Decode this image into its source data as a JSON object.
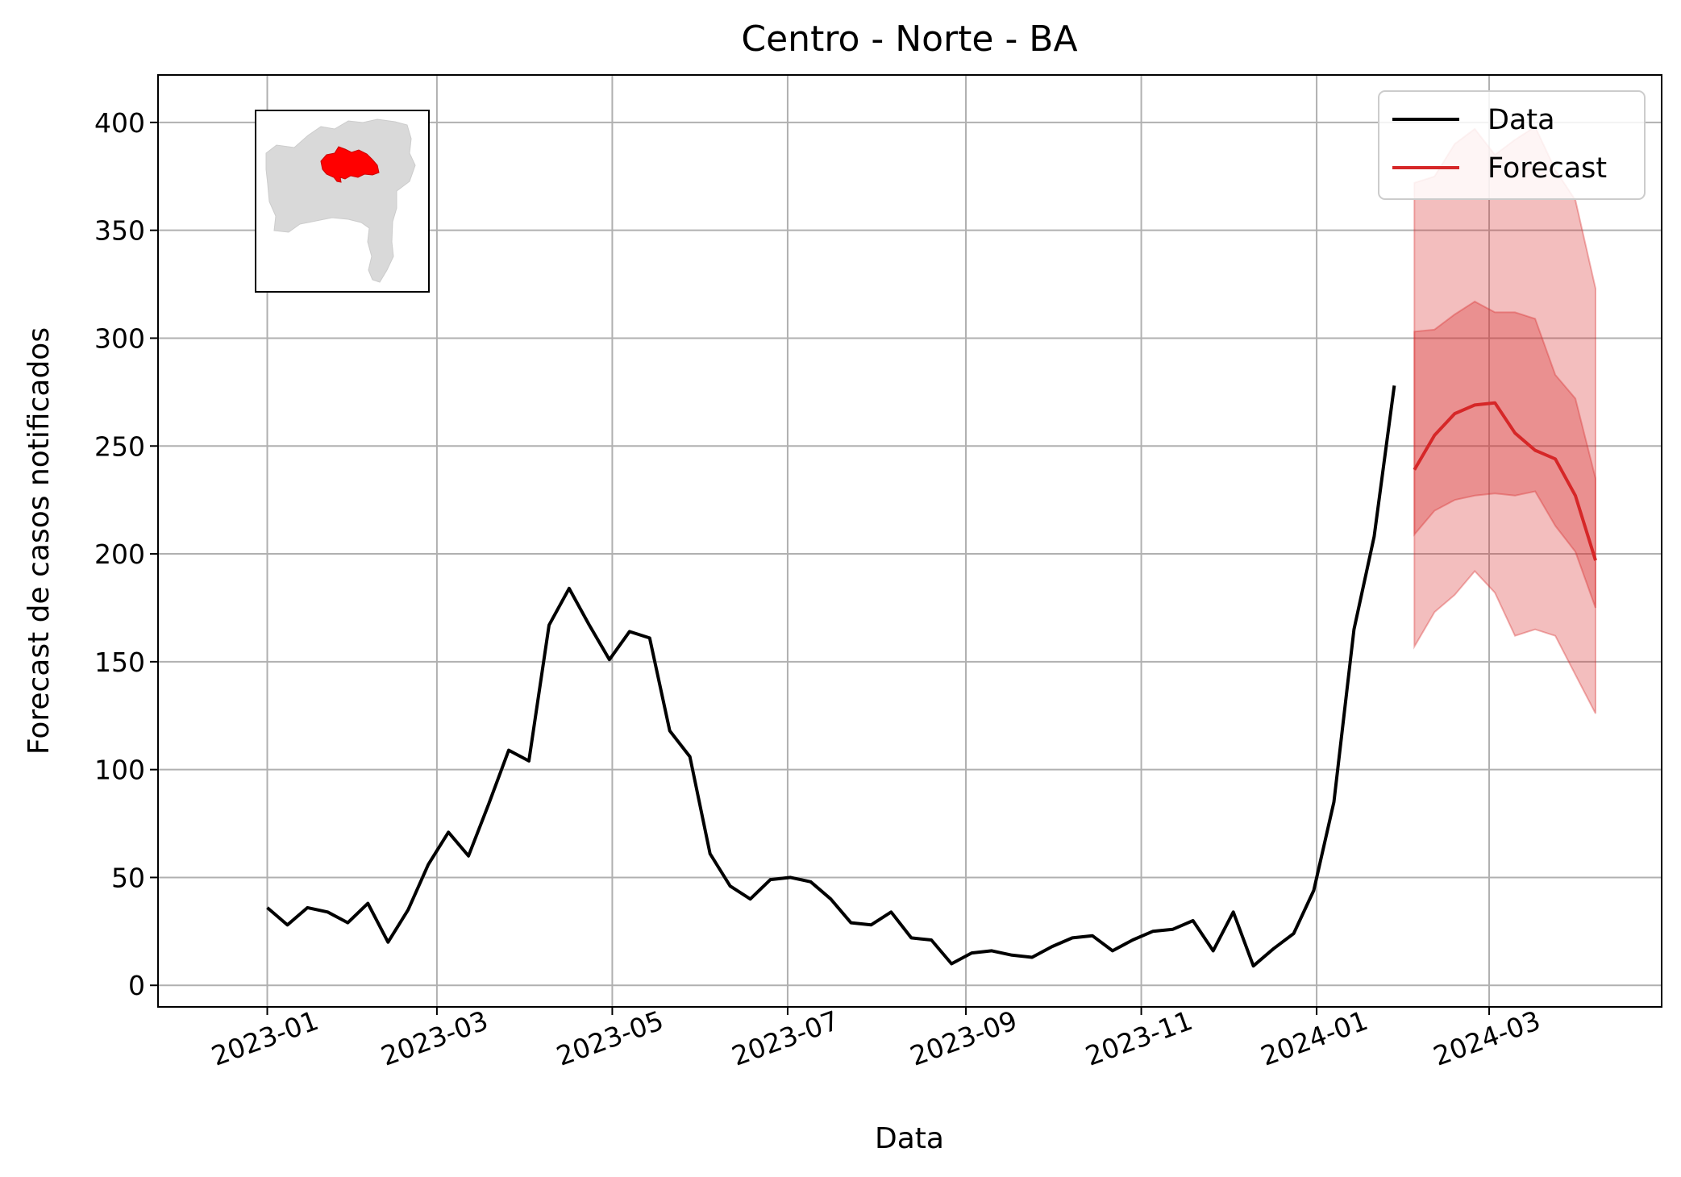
{
  "chart_data": {
    "type": "line",
    "title": "Centro - Norte - BA",
    "xlabel": "Data",
    "ylabel": "Forecast de casos notificados",
    "ylim": [
      -10,
      422
    ],
    "xlim": [
      "2022-11-24",
      "2024-04-30"
    ],
    "grid": true,
    "legend_placement": "top-right",
    "y_ticks": [
      0,
      50,
      100,
      150,
      200,
      250,
      300,
      350,
      400
    ],
    "x_ticks": [
      "2023-01",
      "2023-03",
      "2023-05",
      "2023-07",
      "2023-09",
      "2023-11",
      "2024-01",
      "2024-03"
    ],
    "colors": {
      "data": "#000000",
      "forecast": "#d62728",
      "band": "#d62728",
      "map_base": "#d9d9d9",
      "map_region": "#ff0000"
    },
    "inset_map": {
      "icon": "bahia-state-map-with-highlighted-region"
    },
    "series": [
      {
        "name": "Data",
        "x": [
          "2023-01-01",
          "2023-01-08",
          "2023-01-15",
          "2023-01-22",
          "2023-01-29",
          "2023-02-05",
          "2023-02-12",
          "2023-02-19",
          "2023-02-26",
          "2023-03-05",
          "2023-03-12",
          "2023-03-19",
          "2023-03-26",
          "2023-04-02",
          "2023-04-09",
          "2023-04-16",
          "2023-04-23",
          "2023-04-30",
          "2023-05-07",
          "2023-05-14",
          "2023-05-21",
          "2023-05-28",
          "2023-06-04",
          "2023-06-11",
          "2023-06-18",
          "2023-06-25",
          "2023-07-02",
          "2023-07-09",
          "2023-07-16",
          "2023-07-23",
          "2023-07-30",
          "2023-08-06",
          "2023-08-13",
          "2023-08-20",
          "2023-08-27",
          "2023-09-03",
          "2023-09-10",
          "2023-09-17",
          "2023-09-24",
          "2023-10-01",
          "2023-10-08",
          "2023-10-15",
          "2023-10-22",
          "2023-10-29",
          "2023-11-05",
          "2023-11-12",
          "2023-11-19",
          "2023-11-26",
          "2023-12-03",
          "2023-12-10",
          "2023-12-17",
          "2023-12-24",
          "2023-12-31",
          "2024-01-07",
          "2024-01-14",
          "2024-01-21",
          "2024-01-28"
        ],
        "y": [
          36,
          28,
          36,
          34,
          29,
          38,
          20,
          35,
          56,
          71,
          60,
          84,
          109,
          104,
          167,
          184,
          167,
          151,
          164,
          161,
          118,
          106,
          61,
          46,
          40,
          49,
          50,
          48,
          40,
          29,
          28,
          34,
          22,
          21,
          10,
          15,
          16,
          14,
          13,
          18,
          22,
          23,
          16,
          21,
          25,
          26,
          30,
          16,
          34,
          9,
          17,
          24,
          44,
          85,
          165,
          208,
          278
        ]
      },
      {
        "name": "Forecast",
        "x": [
          "2024-02-04",
          "2024-02-11",
          "2024-02-18",
          "2024-02-25",
          "2024-03-03",
          "2024-03-10",
          "2024-03-17",
          "2024-03-24",
          "2024-03-31",
          "2024-04-07"
        ],
        "y": [
          239,
          255,
          265,
          269,
          270,
          256,
          248,
          244,
          227,
          197
        ],
        "ci50_lower": [
          209,
          220,
          225,
          227,
          228,
          227,
          229,
          213,
          201,
          175
        ],
        "ci50_upper": [
          303,
          304,
          311,
          317,
          312,
          312,
          309,
          283,
          272,
          235
        ],
        "ci90_lower": [
          157,
          173,
          181,
          192,
          182,
          162,
          165,
          162,
          144,
          126
        ],
        "ci90_upper": [
          372,
          375,
          390,
          397,
          385,
          392,
          398,
          378,
          364,
          323
        ]
      }
    ]
  }
}
